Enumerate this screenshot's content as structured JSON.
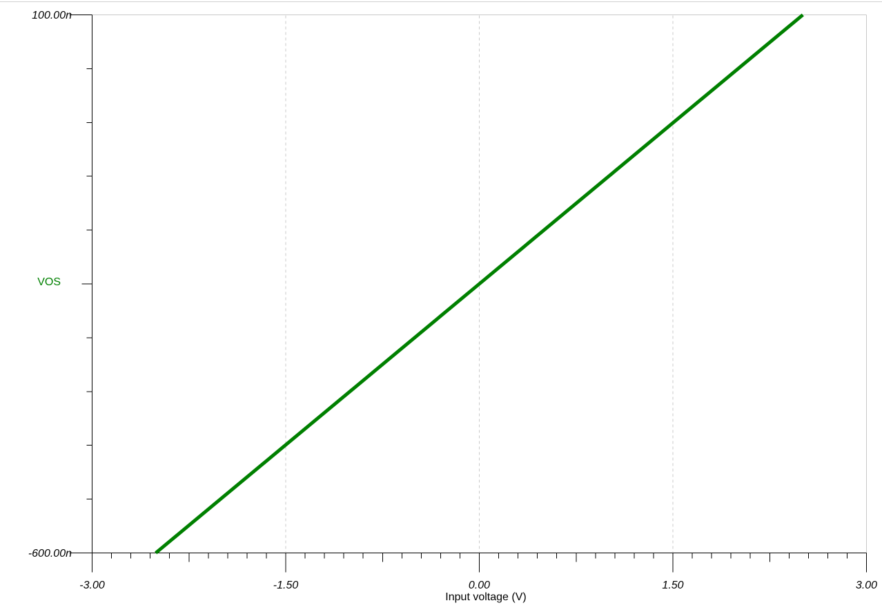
{
  "window": {
    "top_border_color": "#d0d0d0",
    "background_color": "#ffffff"
  },
  "chart_data": {
    "type": "line",
    "title": "",
    "xlabel": "Input voltage (V)",
    "ylabel": "VOS",
    "y_unit_suffix": "n",
    "xlim": [
      -3.0,
      3.0
    ],
    "ylim_n": [
      -600,
      100
    ],
    "x_major_values": [
      -3.0,
      -1.5,
      0.0,
      1.5,
      3.0
    ],
    "x_tick_labels": [
      "-3.00",
      "-1.50",
      "0.00",
      "1.50",
      "3.00"
    ],
    "x_minor_divisions_total": 40,
    "x_minor_step_v": 0.15,
    "y_minor_divisions_total": 10,
    "y_minor_step_n": 70,
    "y_tick_labels": {
      "top": "100.00n",
      "bottom": "-600.00n"
    },
    "gridline_x_values": [
      -1.5,
      0.0,
      1.5
    ],
    "grid_style": "dashed",
    "legend_position": "left-middle",
    "axis_color": "#000000",
    "grid_color": "#c8c8c8",
    "frame_color": "#c8c8c8",
    "text_color": "#000000",
    "series": [
      {
        "name": "VOS",
        "color": "#008000",
        "line_width": 5,
        "x": [
          -2.507,
          0.0,
          2.507
        ],
        "y_n": [
          -600,
          -250,
          100
        ]
      }
    ]
  }
}
